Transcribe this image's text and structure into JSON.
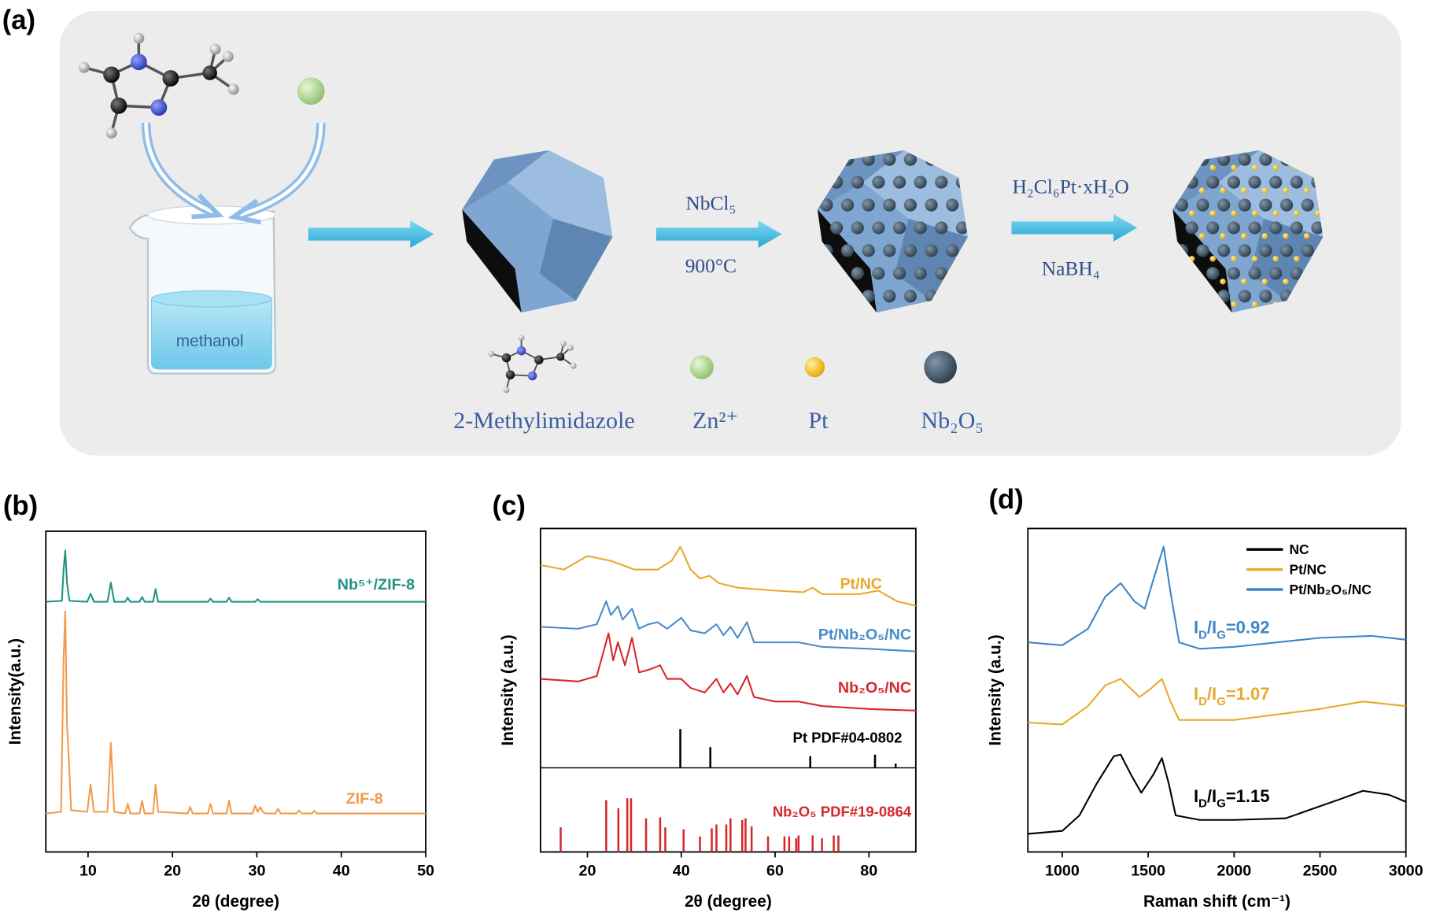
{
  "scheme": {
    "label": "(a)",
    "solvent": "methanol",
    "step1": {
      "reagent": "NbCl₅",
      "condition": "900°C"
    },
    "step2": {
      "reagent": "H₂Cl₆Pt·xH₂O",
      "condition": "NaBH₄"
    },
    "legend": [
      "2-Methylimidazole",
      "Zn²⁺",
      "Pt",
      "Nb₂O₅"
    ]
  },
  "chart_data": [
    {
      "type": "line",
      "panel_label": "(b)",
      "x_label": "2θ (degree)",
      "y_label": "Intensity(a.u.)",
      "xlim": [
        5,
        50
      ],
      "ylim": [
        0,
        100
      ],
      "xticks": [
        10,
        20,
        30,
        40,
        50
      ],
      "series": [
        {
          "name": "ZIF-8",
          "color": "#f29b4c",
          "x": [
            5,
            6.8,
            7.1,
            7.3,
            7.5,
            7.7,
            8.0,
            9.9,
            10.3,
            10.7,
            12.3,
            12.7,
            13.1,
            14.4,
            14.7,
            15.0,
            16.1,
            16.4,
            16.7,
            17.7,
            18.0,
            18.3,
            21.8,
            22.1,
            22.4,
            24.2,
            24.5,
            24.8,
            26.4,
            26.7,
            27.0,
            29.5,
            29.8,
            30.1,
            30.4,
            30.7,
            31.0,
            32.2,
            32.5,
            32.8,
            34.7,
            35.0,
            35.3,
            36.5,
            36.8,
            37.1,
            50
          ],
          "values": [
            12,
            12.5,
            60,
            75,
            40,
            30,
            13,
            12.5,
            21,
            12.5,
            12.5,
            34,
            12.5,
            12,
            15,
            12,
            12,
            16,
            12,
            12,
            21,
            12.5,
            12,
            14,
            12,
            12,
            15,
            12,
            12,
            16,
            12,
            12,
            14.5,
            12.5,
            14,
            12.5,
            12,
            12,
            13.5,
            12,
            12,
            13,
            12,
            12,
            12.8,
            12,
            12
          ]
        },
        {
          "name": "Nb⁵⁺/ZIF-8",
          "color": "#1f9484",
          "x": [
            5,
            6.9,
            7.1,
            7.3,
            7.5,
            7.8,
            9.9,
            10.3,
            10.7,
            12.3,
            12.7,
            13.1,
            14.4,
            14.7,
            15.0,
            16.1,
            16.4,
            16.7,
            17.7,
            18.0,
            18.3,
            24.2,
            24.5,
            24.8,
            26.4,
            26.7,
            27.0,
            29.8,
            30.1,
            30.4,
            50
          ],
          "values": [
            78,
            78.3,
            88,
            94,
            84,
            78.3,
            78,
            80.5,
            78,
            78,
            84,
            78,
            78,
            79.3,
            78,
            78,
            79.5,
            78,
            78,
            82,
            78,
            78,
            79,
            78,
            78,
            79.3,
            78,
            78,
            78.8,
            78,
            78
          ]
        }
      ]
    },
    {
      "type": "line",
      "panel_label": "(c)",
      "x_label": "2θ (degree)",
      "y_label": "Intensity (a.u.)",
      "xlim": [
        10,
        90
      ],
      "ylim": [
        0,
        100
      ],
      "xticks": [
        20,
        40,
        60,
        80
      ],
      "series": [
        {
          "name": "Pt/NC",
          "color": "#e8a92a",
          "x": [
            10,
            15,
            20,
            25,
            30,
            35,
            38,
            39.8,
            42,
            44,
            46,
            48,
            52,
            60,
            66,
            68,
            70,
            78,
            82,
            86,
            90
          ],
          "values": [
            88.7,
            87.3,
            91.5,
            90,
            87.3,
            87.3,
            90.1,
            94.4,
            87.3,
            84.5,
            85.4,
            83.1,
            81.7,
            80.8,
            80.3,
            81.7,
            79.7,
            79.7,
            80.8,
            77.5,
            76.1
          ]
        },
        {
          "name": "Pt/Nb₂O₅/NC",
          "color": "#4a8bc9",
          "x": [
            10,
            18,
            22,
            24,
            25,
            26.5,
            27.5,
            29.5,
            31,
            33,
            35,
            37,
            40,
            42,
            45,
            47.5,
            49,
            50.5,
            52,
            54,
            55.5,
            60,
            65,
            70,
            80,
            90
          ],
          "values": [
            69.6,
            69,
            70.4,
            77.5,
            73.2,
            76,
            71.8,
            75.2,
            69,
            70.4,
            71,
            69,
            72.4,
            68.5,
            67.6,
            70.4,
            67,
            69.6,
            66.2,
            71,
            64.8,
            64.8,
            64.8,
            63.4,
            62.8,
            62
          ]
        },
        {
          "name": "Nb₂O₅/NC",
          "color": "#d6282a",
          "x": [
            10,
            18,
            22,
            24.5,
            25.5,
            26.5,
            28,
            29.5,
            31,
            33,
            35.5,
            37,
            40,
            42,
            45,
            47.5,
            49,
            50.5,
            52,
            54,
            55.5,
            60,
            65,
            70,
            80,
            90
          ],
          "values": [
            53.5,
            52.7,
            54.4,
            67.6,
            59.2,
            64.8,
            57.7,
            66.2,
            55.5,
            56.3,
            57.7,
            53.5,
            53.5,
            50.7,
            49.3,
            53.5,
            49.3,
            52.1,
            48.7,
            54.4,
            47.9,
            46.5,
            46.5,
            45.1,
            44.2,
            43.7
          ]
        }
      ],
      "references": [
        {
          "name": "Pt PDF#04-0802",
          "color": "#000000",
          "base": 26,
          "x": [
            39.8,
            46.2,
            67.5,
            81.3,
            85.7
          ],
          "values": [
            38,
            32.4,
            29.6,
            30.1,
            27.3
          ]
        },
        {
          "name": "Nb₂O₅ PDF#19-0864",
          "color": "#d6282a",
          "base": 0,
          "x": [
            14.3,
            24,
            26.6,
            28.5,
            29.3,
            32.5,
            35.5,
            36.6,
            40.5,
            44,
            46.5,
            47.5,
            49.6,
            50.5,
            53,
            53.7,
            55,
            58.5,
            62,
            63,
            64.5,
            65,
            68,
            70,
            72.5,
            73.5
          ],
          "values": [
            7.6,
            16,
            13.5,
            16.6,
            16.6,
            10.4,
            10.7,
            7.6,
            7,
            4.8,
            7.3,
            8.5,
            8.5,
            10.4,
            9.9,
            10.4,
            7.9,
            4.8,
            4.8,
            4.8,
            4.2,
            5.1,
            5.1,
            4.2,
            5.1,
            5.1
          ]
        }
      ]
    },
    {
      "type": "line",
      "panel_label": "(d)",
      "x_label": "Raman shift (cm⁻¹)",
      "y_label": "Intensity (a.u.)",
      "xlim": [
        800,
        3000
      ],
      "ylim": [
        0,
        100
      ],
      "xticks": [
        1000,
        1500,
        2000,
        2500,
        3000
      ],
      "legend": "upper right",
      "series": [
        {
          "name": "NC",
          "color": "#000000",
          "x": [
            800,
            1000,
            1100,
            1200,
            1300,
            1340,
            1400,
            1460,
            1530,
            1580,
            1620,
            1660,
            1800,
            2000,
            2300,
            2600,
            2750,
            2900,
            3000
          ],
          "values": [
            5.6,
            6.5,
            11.3,
            21.1,
            29.6,
            30.1,
            23.9,
            18.3,
            23.9,
            29,
            21.1,
            11.3,
            9.9,
            9.9,
            10.4,
            16,
            18.9,
            17.7,
            15.5
          ]
        },
        {
          "name": "Pt/NC",
          "color": "#e8a92a",
          "x": [
            800,
            1000,
            1150,
            1250,
            1340,
            1450,
            1520,
            1580,
            1630,
            1680,
            2000,
            2500,
            2750,
            3000
          ],
          "values": [
            40,
            39.4,
            45.1,
            51.5,
            53.5,
            47.9,
            50.7,
            53.5,
            46.5,
            40.8,
            40.8,
            44.2,
            46.5,
            45.1
          ]
        },
        {
          "name": "Pt/Nb₂O₅/NC",
          "color": "#3d85c6",
          "x": [
            800,
            1000,
            1150,
            1250,
            1340,
            1420,
            1480,
            1540,
            1590,
            1630,
            1680,
            1800,
            2000,
            2500,
            2800,
            3000
          ],
          "values": [
            64.8,
            63.9,
            69,
            78.9,
            83.1,
            77.5,
            75.2,
            85.9,
            94.4,
            80.3,
            64.8,
            62.8,
            63.4,
            66.2,
            66.8,
            65.6
          ]
        }
      ],
      "annotations": [
        {
          "parts": [
            "I",
            "D",
            "/I",
            "G",
            "=0.92"
          ],
          "color": "#3d85c6"
        },
        {
          "parts": [
            "I",
            "D",
            "/I",
            "G",
            "=1.07"
          ],
          "color": "#e8a92a"
        },
        {
          "parts": [
            "I",
            "D",
            "/I",
            "G",
            "=1.15"
          ],
          "color": "#000000"
        }
      ]
    }
  ]
}
